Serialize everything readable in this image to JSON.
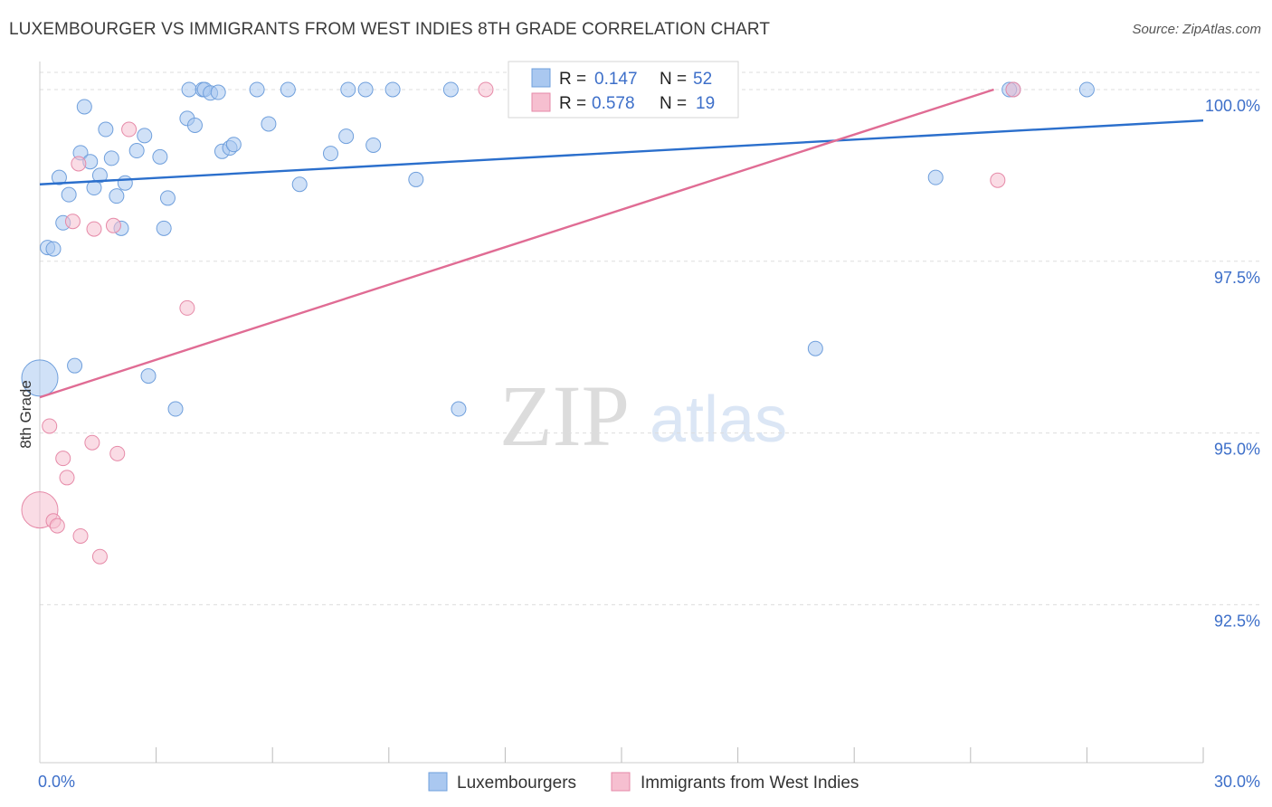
{
  "header": {
    "title": "LUXEMBOURGER VS IMMIGRANTS FROM WEST INDIES 8TH GRADE CORRELATION CHART",
    "source": "Source: ZipAtlas.com"
  },
  "watermark": {
    "zip": "ZIP",
    "atlas": "atlas"
  },
  "colors": {
    "blue_fill": "#aac8f0",
    "blue_stroke": "#6f9fdc",
    "blue_line": "#2b6fcc",
    "pink_fill": "#f6bfd0",
    "pink_stroke": "#e68aa8",
    "pink_line": "#e06c94",
    "grid": "#dddddd",
    "tick_text": "#3d6fc9"
  },
  "legend": {
    "rows": [
      {
        "r_label": "R =",
        "r_value": "0.147",
        "n_label": "N =",
        "n_value": "52"
      },
      {
        "r_label": "R =",
        "r_value": "0.578",
        "n_label": "N =",
        "n_value": "19"
      }
    ]
  },
  "chart_data": {
    "type": "scatter",
    "title": "LUXEMBOURGER VS IMMIGRANTS FROM WEST INDIES 8TH GRADE CORRELATION CHART",
    "xlabel": "",
    "ylabel": "8th Grade",
    "xlim": [
      0,
      30
    ],
    "ylim": [
      90.2,
      100.25
    ],
    "x_tick_labels": [
      {
        "value": 0,
        "label": "0.0%"
      },
      {
        "value": 30,
        "label": "30.0%"
      }
    ],
    "y_tick_labels": [
      {
        "value": 100.0,
        "label": "100.0%"
      },
      {
        "value": 97.5,
        "label": "97.5%"
      },
      {
        "value": 95.0,
        "label": "95.0%"
      },
      {
        "value": 92.5,
        "label": "92.5%"
      }
    ],
    "x_minor_ticks": [
      3,
      6,
      9,
      12,
      15,
      18,
      21,
      24,
      27,
      30
    ],
    "legend_position": "top-center",
    "series": [
      {
        "name": "Luxembourgers",
        "color": "blue",
        "trend": {
          "x": [
            0,
            30
          ],
          "y": [
            98.62,
            99.55
          ]
        },
        "points": [
          {
            "x": 0.0,
            "y": 95.8,
            "big": true
          },
          {
            "x": 0.2,
            "y": 97.7
          },
          {
            "x": 0.35,
            "y": 97.68
          },
          {
            "x": 0.5,
            "y": 98.72
          },
          {
            "x": 0.6,
            "y": 98.06
          },
          {
            "x": 0.75,
            "y": 98.47
          },
          {
            "x": 0.9,
            "y": 95.98
          },
          {
            "x": 1.05,
            "y": 99.08
          },
          {
            "x": 1.15,
            "y": 99.75
          },
          {
            "x": 1.3,
            "y": 98.95
          },
          {
            "x": 1.4,
            "y": 98.57
          },
          {
            "x": 1.55,
            "y": 98.75
          },
          {
            "x": 1.7,
            "y": 99.42
          },
          {
            "x": 1.85,
            "y": 99.0
          },
          {
            "x": 1.98,
            "y": 98.45
          },
          {
            "x": 2.1,
            "y": 97.98
          },
          {
            "x": 2.2,
            "y": 98.64
          },
          {
            "x": 2.5,
            "y": 99.11
          },
          {
            "x": 2.7,
            "y": 99.33
          },
          {
            "x": 2.8,
            "y": 95.83
          },
          {
            "x": 3.1,
            "y": 99.02
          },
          {
            "x": 3.2,
            "y": 97.98
          },
          {
            "x": 3.3,
            "y": 98.42
          },
          {
            "x": 3.5,
            "y": 95.35
          },
          {
            "x": 3.8,
            "y": 99.58
          },
          {
            "x": 3.85,
            "y": 100.0
          },
          {
            "x": 4.0,
            "y": 99.48
          },
          {
            "x": 4.2,
            "y": 100.0
          },
          {
            "x": 4.25,
            "y": 100.0
          },
          {
            "x": 4.4,
            "y": 99.95
          },
          {
            "x": 4.6,
            "y": 99.96
          },
          {
            "x": 4.7,
            "y": 99.1
          },
          {
            "x": 4.9,
            "y": 99.15
          },
          {
            "x": 5.0,
            "y": 99.2
          },
          {
            "x": 5.6,
            "y": 100.0
          },
          {
            "x": 5.9,
            "y": 99.5
          },
          {
            "x": 6.4,
            "y": 100.0
          },
          {
            "x": 6.7,
            "y": 98.62
          },
          {
            "x": 7.5,
            "y": 99.07
          },
          {
            "x": 7.9,
            "y": 99.32
          },
          {
            "x": 7.95,
            "y": 100.0
          },
          {
            "x": 8.4,
            "y": 100.0
          },
          {
            "x": 8.6,
            "y": 99.19
          },
          {
            "x": 9.1,
            "y": 100.0
          },
          {
            "x": 9.7,
            "y": 98.69
          },
          {
            "x": 10.6,
            "y": 100.0
          },
          {
            "x": 10.8,
            "y": 95.35
          },
          {
            "x": 20.0,
            "y": 96.23
          },
          {
            "x": 23.1,
            "y": 98.72
          },
          {
            "x": 25.1,
            "y": 100.0
          },
          {
            "x": 25.0,
            "y": 100.0
          },
          {
            "x": 27.0,
            "y": 100.0
          }
        ]
      },
      {
        "name": "Immigrants from West Indies",
        "color": "pink",
        "trend": {
          "x": [
            0,
            24.6
          ],
          "y": [
            95.52,
            100.0
          ]
        },
        "points": [
          {
            "x": 0.0,
            "y": 93.88,
            "big": true
          },
          {
            "x": 0.25,
            "y": 95.1
          },
          {
            "x": 0.35,
            "y": 93.72
          },
          {
            "x": 0.45,
            "y": 93.65
          },
          {
            "x": 0.6,
            "y": 94.63
          },
          {
            "x": 0.7,
            "y": 94.35
          },
          {
            "x": 0.85,
            "y": 98.08
          },
          {
            "x": 1.0,
            "y": 98.92
          },
          {
            "x": 1.05,
            "y": 93.5
          },
          {
            "x": 1.35,
            "y": 94.86
          },
          {
            "x": 1.4,
            "y": 97.97
          },
          {
            "x": 1.55,
            "y": 93.2
          },
          {
            "x": 1.9,
            "y": 98.02
          },
          {
            "x": 2.0,
            "y": 94.7
          },
          {
            "x": 2.3,
            "y": 99.42
          },
          {
            "x": 3.8,
            "y": 96.82
          },
          {
            "x": 11.5,
            "y": 100.0
          },
          {
            "x": 24.7,
            "y": 98.68
          },
          {
            "x": 25.1,
            "y": 100.0
          }
        ]
      }
    ]
  },
  "bottom_legend": {
    "items": [
      {
        "label": "Luxembourgers",
        "color": "blue"
      },
      {
        "label": "Immigrants from West Indies",
        "color": "pink"
      }
    ]
  }
}
